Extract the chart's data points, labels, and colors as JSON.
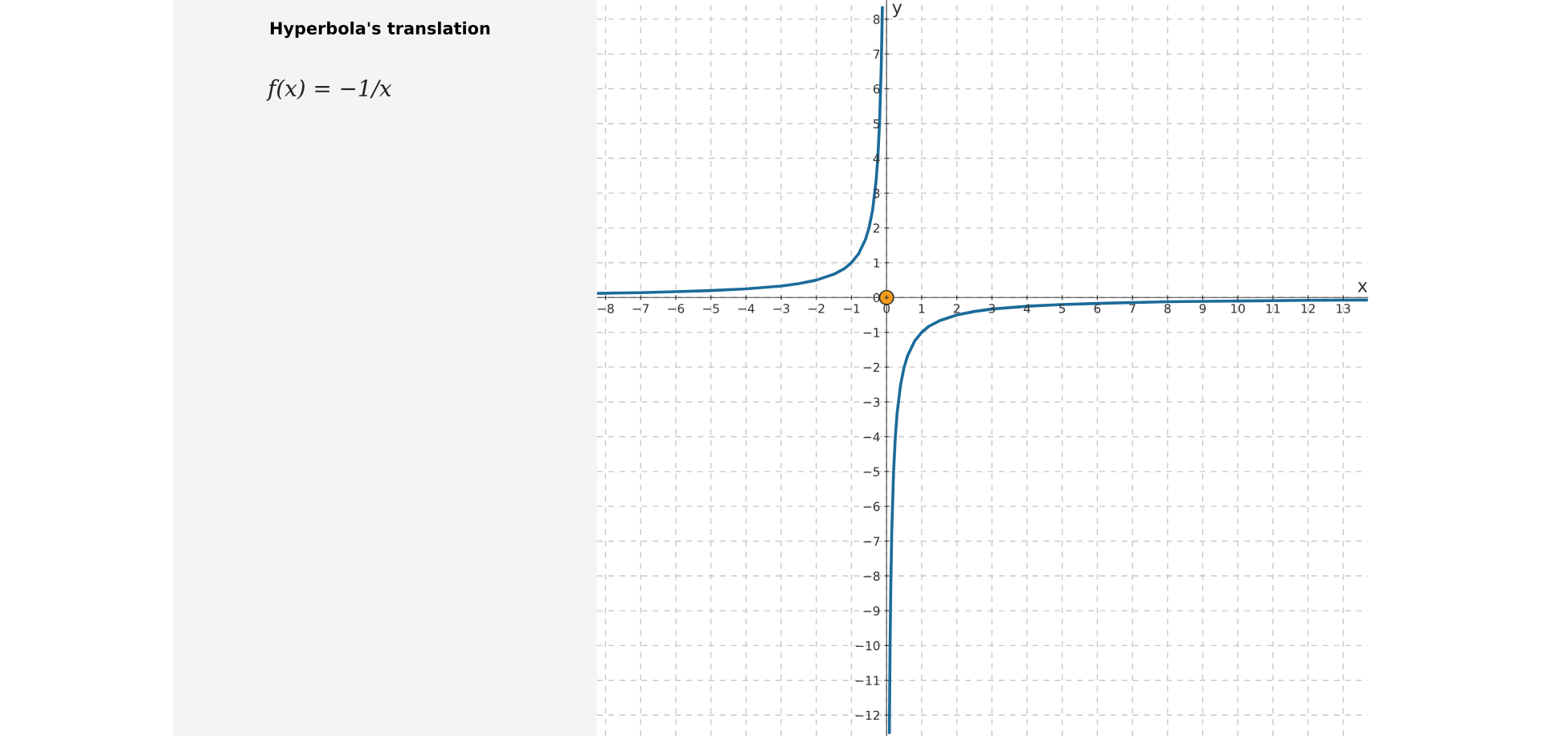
{
  "chart_data": {
    "type": "line",
    "title": "Hyperbola's translation",
    "annotations": [
      "f(x) = −1/x"
    ],
    "xlabel": "x",
    "ylabel": "y",
    "series": [
      {
        "color": "#1b6b9b",
        "x": [
          -8.2,
          -7,
          -6,
          -5,
          -4,
          -3,
          -2.5,
          -2,
          -1.5,
          -1.2,
          -1,
          -0.8,
          -0.6,
          -0.5,
          -0.4,
          -0.3,
          -0.25,
          -0.2,
          -0.15,
          -0.12
        ],
        "values": [
          0.12,
          0.14,
          0.17,
          0.2,
          0.25,
          0.33,
          0.4,
          0.5,
          0.67,
          0.83,
          1,
          1.25,
          1.67,
          2,
          2.5,
          3.33,
          4,
          5,
          6.67,
          8.33
        ]
      },
      {
        "color": "#1b6b9b",
        "x": [
          0.08,
          0.1,
          0.12,
          0.15,
          0.2,
          0.25,
          0.3,
          0.4,
          0.5,
          0.6,
          0.8,
          1,
          1.2,
          1.5,
          2,
          2.5,
          3,
          4,
          5,
          6,
          8,
          10,
          12,
          13.7
        ],
        "values": [
          -12.5,
          -10,
          -8.33,
          -6.67,
          -5,
          -4,
          -3.33,
          -2.5,
          -2,
          -1.67,
          -1.25,
          -1,
          -0.83,
          -0.67,
          -0.5,
          -0.4,
          -0.33,
          -0.25,
          -0.2,
          -0.17,
          -0.12,
          -0.1,
          -0.08,
          -0.07
        ]
      },
      {
        "type": "scatter",
        "color": "#f59c1a",
        "x": [
          0
        ],
        "values": [
          0
        ]
      }
    ],
    "xlim": [
      -8.24,
      13.7
    ],
    "ylim": [
      -12.6,
      8.55
    ],
    "xticks": [
      {
        "value": -8,
        "label": "−8"
      },
      {
        "value": -7,
        "label": "−7"
      },
      {
        "value": -6,
        "label": "−6"
      },
      {
        "value": -5,
        "label": "−5"
      },
      {
        "value": -4,
        "label": "−4"
      },
      {
        "value": -3,
        "label": "−3"
      },
      {
        "value": -2,
        "label": "−2"
      },
      {
        "value": -1,
        "label": "−1"
      },
      0,
      1,
      2,
      3,
      4,
      5,
      6,
      7,
      8,
      9,
      10,
      11,
      12,
      13
    ],
    "yticks": [
      {
        "value": -12,
        "label": "−12"
      },
      {
        "value": -11,
        "label": "−11"
      },
      {
        "value": -10,
        "label": "−10"
      },
      {
        "value": -9,
        "label": "−9"
      },
      {
        "value": -8,
        "label": "−8"
      },
      {
        "value": -7,
        "label": "−7"
      },
      {
        "value": -6,
        "label": "−6"
      },
      {
        "value": -5,
        "label": "−5"
      },
      {
        "value": -4,
        "label": "−4"
      },
      {
        "value": -3,
        "label": "−3"
      },
      {
        "value": -2,
        "label": "−2"
      },
      {
        "value": -1,
        "label": "−1"
      },
      0,
      1,
      2,
      3,
      4,
      5,
      6,
      7,
      8
    ],
    "grid": true,
    "line_style": "solid"
  }
}
